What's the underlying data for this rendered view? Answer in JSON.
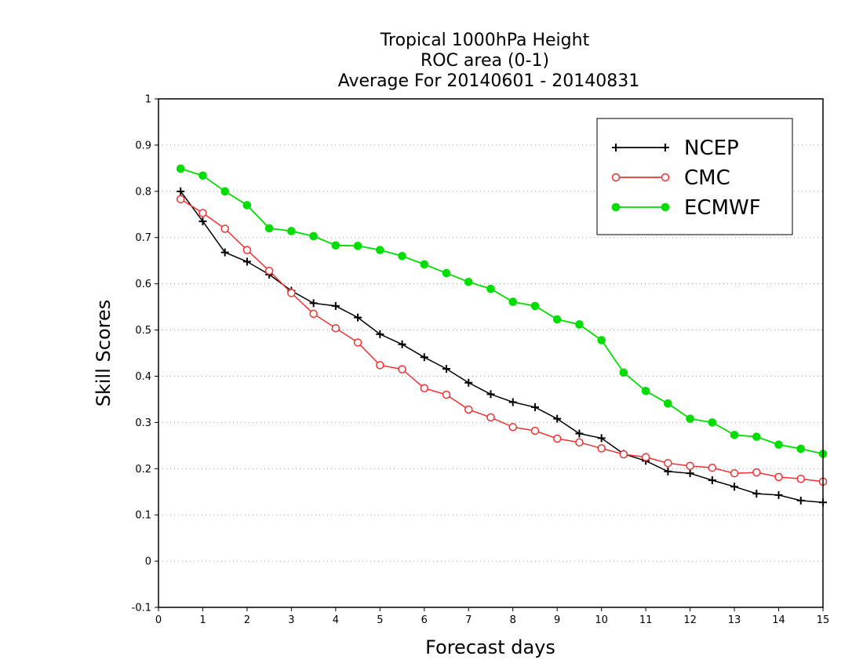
{
  "chart_data": {
    "type": "line",
    "title": [
      "Tropical 1000hPa Height",
      "ROC area (0-1)",
      "Average For 20140601 - 20140831"
    ],
    "xlabel": "Forecast days",
    "ylabel": "Skill Scores",
    "xlim": [
      0,
      15
    ],
    "ylim": [
      -0.1,
      1
    ],
    "xticks": [
      0,
      1,
      2,
      3,
      4,
      5,
      6,
      7,
      8,
      9,
      10,
      11,
      12,
      13,
      14,
      15
    ],
    "xtick_labels": [
      "0",
      "1",
      "2",
      "3",
      "4",
      "5",
      "6",
      "7",
      "8",
      "9",
      "10",
      "11",
      "12",
      "13",
      "14",
      "15"
    ],
    "yticks": [
      -0.1,
      0,
      0.1,
      0.2,
      0.3,
      0.4,
      0.5,
      0.6,
      0.7,
      0.8,
      0.9,
      1
    ],
    "ytick_labels": [
      "-0.1",
      "0",
      "0.1",
      "0.2",
      "0.3",
      "0.4",
      "0.5",
      "0.6",
      "0.7",
      "0.8",
      "0.9",
      "1"
    ],
    "grid": "horizontal dotted",
    "legend_position": "top-right",
    "x": [
      0.5,
      1,
      1.5,
      2,
      2.5,
      3,
      3.5,
      4,
      4.5,
      5,
      5.5,
      6,
      6.5,
      7,
      7.5,
      8,
      8.5,
      9,
      9.5,
      10,
      10.5,
      11,
      11.5,
      12,
      12.5,
      13,
      13.5,
      14,
      14.5,
      15
    ],
    "series": [
      {
        "name": "NCEP",
        "color": "#000000",
        "marker": "plus",
        "values": [
          0.8,
          0.735,
          0.668,
          0.648,
          0.62,
          0.585,
          0.558,
          0.552,
          0.527,
          0.491,
          0.469,
          0.441,
          0.416,
          0.386,
          0.361,
          0.344,
          0.333,
          0.308,
          0.276,
          0.266,
          0.232,
          0.217,
          0.194,
          0.19,
          0.175,
          0.161,
          0.146,
          0.143,
          0.131,
          0.127
        ]
      },
      {
        "name": "CMC",
        "color": "#ee3333",
        "marker": "open-circle",
        "values": [
          0.783,
          0.753,
          0.719,
          0.673,
          0.628,
          0.58,
          0.535,
          0.504,
          0.473,
          0.424,
          0.415,
          0.374,
          0.36,
          0.328,
          0.311,
          0.29,
          0.282,
          0.265,
          0.257,
          0.244,
          0.231,
          0.225,
          0.212,
          0.206,
          0.202,
          0.19,
          0.192,
          0.182,
          0.178,
          0.172
        ]
      },
      {
        "name": "ECMWF",
        "color": "#00dd00",
        "marker": "filled-circle",
        "values": [
          0.849,
          0.834,
          0.8,
          0.77,
          0.72,
          0.714,
          0.703,
          0.683,
          0.682,
          0.673,
          0.66,
          0.642,
          0.623,
          0.604,
          0.589,
          0.561,
          0.552,
          0.523,
          0.512,
          0.478,
          0.408,
          0.368,
          0.341,
          0.308,
          0.3,
          0.273,
          0.269,
          0.252,
          0.243,
          0.232
        ]
      }
    ]
  }
}
